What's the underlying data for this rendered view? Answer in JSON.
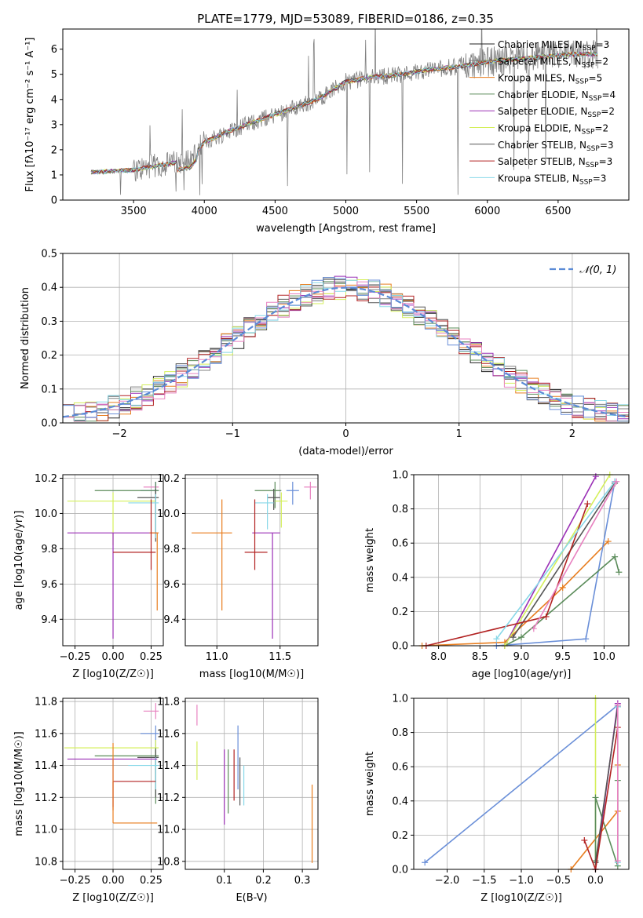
{
  "figure_title": "PLATE=1779, MJD=53089, FIBERID=0186, z=0.35",
  "series_colors": [
    "#222222",
    "#808080",
    "#e87d1e",
    "#5b8c5a",
    "#9b30b6",
    "#d4ef5a",
    "#555555",
    "#b22222",
    "#88d8e8",
    "#e882c0",
    "#6a8fd8"
  ],
  "chart_data": [
    {
      "id": "spectrum",
      "type": "line",
      "title": "PLATE=1779, MJD=53089, FIBERID=0186, z=0.35",
      "xlabel": "wavelength [Angstrom, rest frame]",
      "ylabel": "Flux [fλ10⁻¹⁷ erg cm⁻² s⁻¹ A⁻¹]",
      "xlim": [
        3000,
        7000
      ],
      "ylim": [
        0,
        6.8
      ],
      "xticks": [
        3500,
        4000,
        4500,
        5000,
        5500,
        6000,
        6500
      ],
      "yticks": [
        0,
        1,
        2,
        3,
        4,
        5,
        6
      ],
      "grid": false,
      "legend_position": "top-right",
      "data_color": "#808080",
      "model_trend": {
        "x": [
          3200,
          3500,
          3700,
          3900,
          4000,
          4200,
          4400,
          4600,
          4800,
          5000,
          5200,
          5400,
          5600,
          5800,
          6000,
          6200,
          6400,
          6600,
          6800
        ],
        "y": [
          1.1,
          1.2,
          1.4,
          1.6,
          2.3,
          2.8,
          3.2,
          3.6,
          4.0,
          4.7,
          4.9,
          5.0,
          5.2,
          5.3,
          5.5,
          5.6,
          5.7,
          5.8,
          5.8
        ]
      },
      "series": [
        {
          "name": "Chabrier MILES, N_SSP=3",
          "color": "#222222"
        },
        {
          "name": "Salpeter MILES, N_SSP=2",
          "color": "#808080"
        },
        {
          "name": "Kroupa MILES, N_SSP=5",
          "color": "#e87d1e"
        },
        {
          "name": "Chabrier ELODIE, N_SSP=4",
          "color": "#5b8c5a"
        },
        {
          "name": "Salpeter ELODIE, N_SSP=2",
          "color": "#9b30b6"
        },
        {
          "name": "Kroupa ELODIE, N_SSP=2",
          "color": "#d4ef5a"
        },
        {
          "name": "Chabrier STELIB, N_SSP=3",
          "color": "#555555"
        },
        {
          "name": "Salpeter STELIB, N_SSP=3",
          "color": "#b22222"
        },
        {
          "name": "Kroupa STELIB, N_SSP=3",
          "color": "#88d8e8"
        }
      ]
    },
    {
      "id": "residuals",
      "type": "line",
      "title": "",
      "xlabel": "(data-model)/error",
      "ylabel": "Normed distribution",
      "xlim": [
        -2.5,
        2.5
      ],
      "ylim": [
        0,
        0.5
      ],
      "xticks": [
        -2,
        -1,
        0,
        1,
        2
      ],
      "xticklabels": [
        "−2",
        "−1",
        "0",
        "1",
        "2"
      ],
      "yticks": [
        0.0,
        0.1,
        0.2,
        0.3,
        0.4,
        0.5
      ],
      "yticklabels": [
        "0.0",
        "0.1",
        "0.2",
        "0.3",
        "0.4",
        "0.5"
      ],
      "grid": true,
      "legend_position": "top-right",
      "gaussian_label": "𝒩(0, 1)",
      "gaussian_color": "#5b8bd6",
      "bin_width": 0.1
    },
    {
      "id": "age-vs-Z",
      "type": "errorbar",
      "xlabel": "Z [log10(Z/Z☉)]",
      "ylabel": "age  [log10(age/yr)]",
      "xlim": [
        -0.33,
        0.33
      ],
      "ylim": [
        9.25,
        10.22
      ],
      "xticks": [
        -0.25,
        0.0,
        0.25
      ],
      "xticklabels": [
        "−0.25",
        "0.00",
        "0.25"
      ],
      "yticks": [
        9.4,
        9.6,
        9.8,
        10.0,
        10.2
      ],
      "yticklabels": [
        "9.4",
        "9.6",
        "9.8",
        "10.0",
        "10.2"
      ],
      "grid": true,
      "points": [
        {
          "x": 0.28,
          "y": 10.15,
          "xerr": [
            0.08,
            0.02
          ],
          "yerr": [
            0.07,
            0.03
          ],
          "color": "#e882c0"
        },
        {
          "x": 0.28,
          "y": 10.13,
          "xerr": [
            0.1,
            0.02
          ],
          "yerr": [
            0.15,
            0.05
          ],
          "color": "#6a8fd8"
        },
        {
          "x": 0.28,
          "y": 10.13,
          "xerr": [
            0.4,
            0.02
          ],
          "yerr": [
            0.25,
            0.05
          ],
          "color": "#5b8c5a"
        },
        {
          "x": 0.28,
          "y": 10.09,
          "xerr": [
            0.12,
            0.02
          ],
          "yerr": [
            0.25,
            0.05
          ],
          "color": "#555555"
        },
        {
          "x": 0.0,
          "y": 10.07,
          "xerr": [
            0.3,
            0.28
          ],
          "yerr": [
            0.25,
            0.05
          ],
          "color": "#d4ef5a"
        },
        {
          "x": 0.28,
          "y": 10.06,
          "xerr": [
            0.18,
            0.02
          ],
          "yerr": [
            0.2,
            0.05
          ],
          "color": "#88d8e8"
        },
        {
          "x": 0.0,
          "y": 9.89,
          "xerr": [
            0.3,
            0.29
          ],
          "yerr": [
            0.6,
            0.0
          ],
          "color": "#9b30b6"
        },
        {
          "x": 0.29,
          "y": 9.89,
          "xerr": [
            0.05,
            0.01
          ],
          "yerr": [
            0.44,
            0.0
          ],
          "color": "#e87d1e"
        },
        {
          "x": 0.25,
          "y": 9.78,
          "xerr": [
            0.25,
            0.03
          ],
          "yerr": [
            0.1,
            0.3
          ],
          "color": "#b22222"
        }
      ]
    },
    {
      "id": "age-vs-mass",
      "type": "errorbar",
      "xlabel": "mass [log10(M/M☉)]",
      "ylabel": "",
      "xlim": [
        10.75,
        11.8
      ],
      "ylim": [
        9.25,
        10.22
      ],
      "xticks": [
        11.0,
        11.5
      ],
      "xticklabels": [
        "11.0",
        "11.5"
      ],
      "yticks": [
        9.4,
        9.6,
        9.8,
        10.0,
        10.2
      ],
      "yticklabels": [
        "9.4",
        "9.6",
        "9.8",
        "10.0",
        "10.2"
      ],
      "grid": true,
      "points": [
        {
          "x": 11.74,
          "y": 10.15,
          "xerr": [
            0.05,
            0.05
          ],
          "yerr": [
            0.07,
            0.03
          ],
          "color": "#e882c0"
        },
        {
          "x": 11.6,
          "y": 10.13,
          "xerr": [
            0.05,
            0.05
          ],
          "yerr": [
            0.08,
            0.05
          ],
          "color": "#6a8fd8"
        },
        {
          "x": 11.46,
          "y": 10.13,
          "xerr": [
            0.16,
            0.05
          ],
          "yerr": [
            0.1,
            0.05
          ],
          "color": "#5b8c5a"
        },
        {
          "x": 11.45,
          "y": 10.09,
          "xerr": [
            0.05,
            0.05
          ],
          "yerr": [
            0.07,
            0.05
          ],
          "color": "#555555"
        },
        {
          "x": 11.51,
          "y": 10.07,
          "xerr": [
            0.05,
            0.05
          ],
          "yerr": [
            0.15,
            0.05
          ],
          "color": "#d4ef5a"
        },
        {
          "x": 11.4,
          "y": 10.06,
          "xerr": [
            0.1,
            0.05
          ],
          "yerr": [
            0.15,
            0.05
          ],
          "color": "#88d8e8"
        },
        {
          "x": 11.44,
          "y": 9.89,
          "xerr": [
            0.16,
            0.06
          ],
          "yerr": [
            0.6,
            0.0
          ],
          "color": "#9b30b6"
        },
        {
          "x": 11.04,
          "y": 9.89,
          "xerr": [
            0.24,
            0.08
          ],
          "yerr": [
            0.44,
            0.19
          ],
          "color": "#e87d1e"
        },
        {
          "x": 11.3,
          "y": 9.78,
          "xerr": [
            0.08,
            0.1
          ],
          "yerr": [
            0.1,
            0.3
          ],
          "color": "#b22222"
        }
      ]
    },
    {
      "id": "mass-weight-vs-age",
      "type": "line",
      "xlabel": "age  [log10(age/yr)]",
      "ylabel": "mass weight",
      "xlim": [
        7.7,
        10.3
      ],
      "ylim": [
        0,
        1.0
      ],
      "xticks": [
        8.0,
        8.5,
        9.0,
        9.5,
        10.0
      ],
      "xticklabels": [
        "8.0",
        "8.5",
        "9.0",
        "9.5",
        "10.0"
      ],
      "yticks": [
        0.0,
        0.2,
        0.4,
        0.6,
        0.8,
        1.0
      ],
      "yticklabels": [
        "0.0",
        "0.2",
        "0.4",
        "0.6",
        "0.8",
        "1.0"
      ],
      "grid": true,
      "series": [
        {
          "color": "#e87d1e",
          "x": [
            7.8,
            8.8,
            9.5,
            10.05
          ],
          "y": [
            0.0,
            0.02,
            0.34,
            0.61
          ]
        },
        {
          "color": "#6a8fd8",
          "x": [
            8.7,
            9.78,
            10.13
          ],
          "y": [
            0.0,
            0.04,
            0.96
          ]
        },
        {
          "color": "#5b8c5a",
          "x": [
            8.8,
            9.0,
            10.13,
            10.18
          ],
          "y": [
            0.0,
            0.05,
            0.52,
            0.43
          ]
        },
        {
          "color": "#9b30b6",
          "x": [
            8.8,
            9.9
          ],
          "y": [
            0.0,
            0.99
          ]
        },
        {
          "color": "#d4ef5a",
          "x": [
            8.8,
            10.07
          ],
          "y": [
            0.0,
            1.0
          ]
        },
        {
          "color": "#555555",
          "x": [
            8.9,
            10.13
          ],
          "y": [
            0.05,
            0.95
          ]
        },
        {
          "color": "#b22222",
          "x": [
            7.85,
            9.3,
            9.8
          ],
          "y": [
            0.0,
            0.17,
            0.83
          ]
        },
        {
          "color": "#88d8e8",
          "x": [
            8.7,
            10.13
          ],
          "y": [
            0.04,
            0.96
          ]
        },
        {
          "color": "#e882c0",
          "x": [
            9.15,
            10.15
          ],
          "y": [
            0.1,
            0.96
          ]
        }
      ]
    },
    {
      "id": "mass-vs-Z",
      "type": "errorbar",
      "xlabel": "Z [log10(Z/Z☉)]",
      "ylabel": "mass [log10(M/M☉)]",
      "xlim": [
        -0.33,
        0.33
      ],
      "ylim": [
        10.75,
        11.82
      ],
      "xticks": [
        -0.25,
        0.0,
        0.25
      ],
      "xticklabels": [
        "−0.25",
        "0.00",
        "0.25"
      ],
      "yticks": [
        10.8,
        11.0,
        11.2,
        11.4,
        11.6,
        11.8
      ],
      "yticklabels": [
        "10.8",
        "11.0",
        "11.2",
        "11.4",
        "11.6",
        "11.8"
      ],
      "grid": true,
      "points": [
        {
          "x": 0.28,
          "y": 11.74,
          "xerr": [
            0.08,
            0.02
          ],
          "yerr": [
            0.05,
            0.05
          ],
          "color": "#e882c0"
        },
        {
          "x": 0.28,
          "y": 11.6,
          "xerr": [
            0.1,
            0.02
          ],
          "yerr": [
            0.25,
            0.05
          ],
          "color": "#6a8fd8"
        },
        {
          "x": 0.28,
          "y": 11.51,
          "xerr": [
            0.6,
            0.02
          ],
          "yerr": [
            0.05,
            0.05
          ],
          "color": "#d4ef5a"
        },
        {
          "x": 0.28,
          "y": 11.46,
          "xerr": [
            0.4,
            0.02
          ],
          "yerr": [
            0.3,
            0.05
          ],
          "color": "#5b8c5a"
        },
        {
          "x": 0.28,
          "y": 11.45,
          "xerr": [
            0.12,
            0.02
          ],
          "yerr": [
            0.25,
            0.05
          ],
          "color": "#555555"
        },
        {
          "x": 0.28,
          "y": 11.4,
          "xerr": [
            0.18,
            0.02
          ],
          "yerr": [
            0.15,
            0.05
          ],
          "color": "#88d8e8"
        },
        {
          "x": 0.0,
          "y": 11.44,
          "xerr": [
            0.3,
            0.29
          ],
          "yerr": [
            0.3,
            0.0
          ],
          "color": "#9b30b6"
        },
        {
          "x": 0.0,
          "y": 11.3,
          "xerr": [
            0.0,
            0.28
          ],
          "yerr": [
            0.18,
            0.0
          ],
          "color": "#b22222"
        },
        {
          "x": 0.0,
          "y": 11.04,
          "xerr": [
            0.0,
            0.29
          ],
          "yerr": [
            0.0,
            0.5
          ],
          "color": "#e87d1e"
        }
      ]
    },
    {
      "id": "mass-vs-EBV",
      "type": "errorbar",
      "xlabel": "E(B-V)",
      "ylabel": "",
      "xlim": [
        0.0,
        0.34
      ],
      "ylim": [
        10.75,
        11.82
      ],
      "xticks": [
        0.1,
        0.2,
        0.3
      ],
      "xticklabels": [
        "0.1",
        "0.2",
        "0.3"
      ],
      "yticks": [
        10.8,
        11.0,
        11.2,
        11.4,
        11.6,
        11.8
      ],
      "yticklabels": [
        "10.8",
        "11.0",
        "11.2",
        "11.4",
        "11.6",
        "11.8"
      ],
      "grid": true,
      "points": [
        {
          "x": 0.03,
          "y": 11.7,
          "xerr": [
            0,
            0
          ],
          "yerr": [
            0.05,
            0.08
          ],
          "color": "#e882c0"
        },
        {
          "x": 0.03,
          "y": 11.45,
          "xerr": [
            0,
            0
          ],
          "yerr": [
            0.14,
            0.1
          ],
          "color": "#d4ef5a"
        },
        {
          "x": 0.1,
          "y": 11.3,
          "xerr": [
            0,
            0
          ],
          "yerr": [
            0.27,
            0.2
          ],
          "color": "#9b30b6"
        },
        {
          "x": 0.11,
          "y": 11.4,
          "xerr": [
            0,
            0
          ],
          "yerr": [
            0.3,
            0.1
          ],
          "color": "#5b8c5a"
        },
        {
          "x": 0.125,
          "y": 11.3,
          "xerr": [
            0,
            0
          ],
          "yerr": [
            0.12,
            0.2
          ],
          "color": "#b22222"
        },
        {
          "x": 0.135,
          "y": 11.5,
          "xerr": [
            0,
            0
          ],
          "yerr": [
            0.25,
            0.15
          ],
          "color": "#6a8fd8"
        },
        {
          "x": 0.14,
          "y": 11.4,
          "xerr": [
            0,
            0
          ],
          "yerr": [
            0.25,
            0.05
          ],
          "color": "#555555"
        },
        {
          "x": 0.15,
          "y": 11.35,
          "xerr": [
            0,
            0
          ],
          "yerr": [
            0.2,
            0.05
          ],
          "color": "#88d8e8"
        },
        {
          "x": 0.325,
          "y": 11.04,
          "xerr": [
            0,
            0
          ],
          "yerr": [
            0.25,
            0.24
          ],
          "color": "#e87d1e"
        }
      ]
    },
    {
      "id": "mass-weight-vs-Z",
      "type": "line",
      "xlabel": "Z [log10(Z/Z☉)]",
      "ylabel": "mass weight",
      "xlim": [
        -2.45,
        0.45
      ],
      "ylim": [
        0,
        1.0
      ],
      "xticks": [
        -2.0,
        -1.5,
        -1.0,
        -0.5,
        0.0
      ],
      "xticklabels": [
        "−2.0",
        "−1.5",
        "−1.0",
        "−0.5",
        "0.0"
      ],
      "yticks": [
        0.0,
        0.2,
        0.4,
        0.6,
        0.8,
        1.0
      ],
      "yticklabels": [
        "0.0",
        "0.2",
        "0.4",
        "0.6",
        "0.8",
        "1.0"
      ],
      "grid": true,
      "series": [
        {
          "color": "#6a8fd8",
          "x": [
            -2.3,
            0.3
          ],
          "y": [
            0.04,
            0.96
          ]
        },
        {
          "color": "#e87d1e",
          "x": [
            -0.33,
            0.3,
            0.3
          ],
          "y": [
            0.0,
            0.34,
            0.61
          ]
        },
        {
          "color": "#d4ef5a",
          "x": [
            0.0,
            0.0
          ],
          "y": [
            0.0,
            1.0
          ]
        },
        {
          "color": "#5b8c5a",
          "x": [
            0.0,
            0.0,
            0.3,
            0.3
          ],
          "y": [
            0.05,
            0.42,
            0.02,
            0.52
          ]
        },
        {
          "color": "#9b30b6",
          "x": [
            0.0,
            0.3
          ],
          "y": [
            0.0,
            0.97
          ]
        },
        {
          "color": "#555555",
          "x": [
            0.0,
            0.3
          ],
          "y": [
            0.04,
            0.95
          ]
        },
        {
          "color": "#b22222",
          "x": [
            -0.15,
            0.0,
            0.3
          ],
          "y": [
            0.17,
            0.0,
            0.83
          ]
        },
        {
          "color": "#88d8e8",
          "x": [
            0.3,
            0.3
          ],
          "y": [
            0.04,
            0.95
          ]
        },
        {
          "color": "#e882c0",
          "x": [
            0.3,
            0.3
          ],
          "y": [
            0.05,
            0.96
          ]
        }
      ]
    }
  ]
}
